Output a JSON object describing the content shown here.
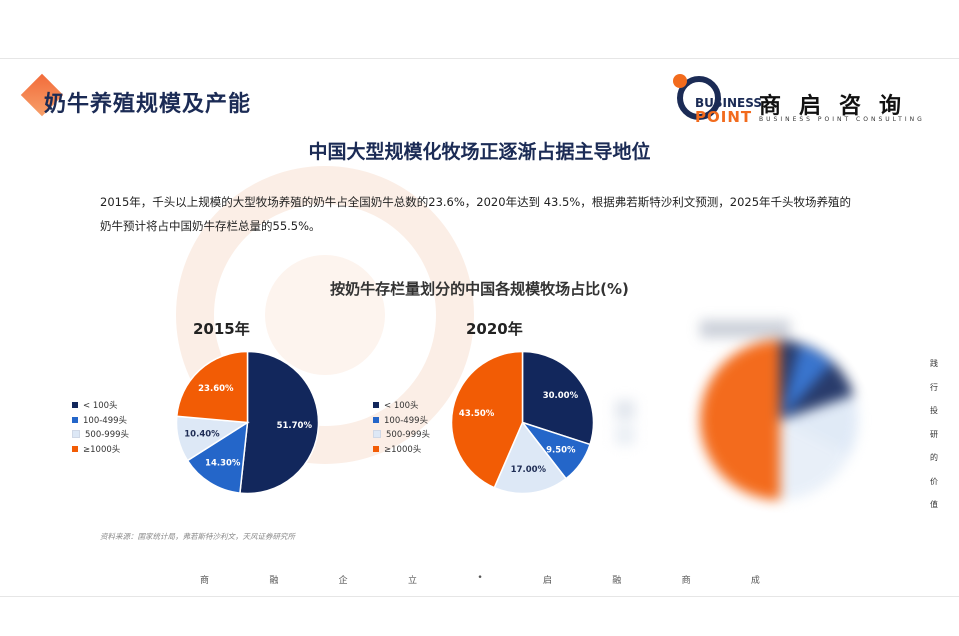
{
  "header": {
    "title": "奶牛养殖规模及产能"
  },
  "logo": {
    "en_line1": "BUSINESS",
    "en_line2": "POINT",
    "cn": "商启咨询",
    "sub": "BUSINESS POINT CONSULTING"
  },
  "subtitle": "中国大型规模化牧场正逐渐占据主导地位",
  "body_text": "2015年，千头以上规模的大型牧场养殖的奶牛占全国奶牛总数的23.6%，2020年达到 43.5%，根据弗若斯特沙利文预测，2025年千头牧场养殖的奶牛预计将占中国奶牛存栏总量的55.5%。",
  "colors": {
    "c1": "#12275c",
    "c2": "#2466c9",
    "c3": "#dde8f6",
    "c4": "#f25c05"
  },
  "chart_data": [
    {
      "type": "pie",
      "title": "2015年",
      "chart_title": "按奶牛存栏量划分的中国各规模牧场占比(%)",
      "categories": [
        "< 100头",
        "100-499头",
        "500-999头",
        "≥1000头"
      ],
      "values": [
        51.7,
        14.3,
        10.4,
        23.6
      ],
      "labels": [
        "51.70%",
        "14.30%",
        "10.40%",
        "23.60%"
      ]
    },
    {
      "type": "pie",
      "title": "2020年",
      "categories": [
        "< 100头",
        "100-499头",
        "500-999头",
        "≥1000头"
      ],
      "values": [
        30.0,
        9.5,
        17.0,
        43.5
      ],
      "labels": [
        "30.00%",
        "9.50%",
        "17.00%",
        "43.50%"
      ]
    }
  ],
  "side_text": [
    "践",
    "行",
    "投",
    "研",
    "的",
    "价",
    "值"
  ],
  "source": "资料来源：国家统计局，弗若斯特沙利文，天风证券研究所",
  "footer": [
    "商",
    "融",
    "企",
    "立",
    "•",
    "启",
    "融",
    "商",
    "成"
  ]
}
